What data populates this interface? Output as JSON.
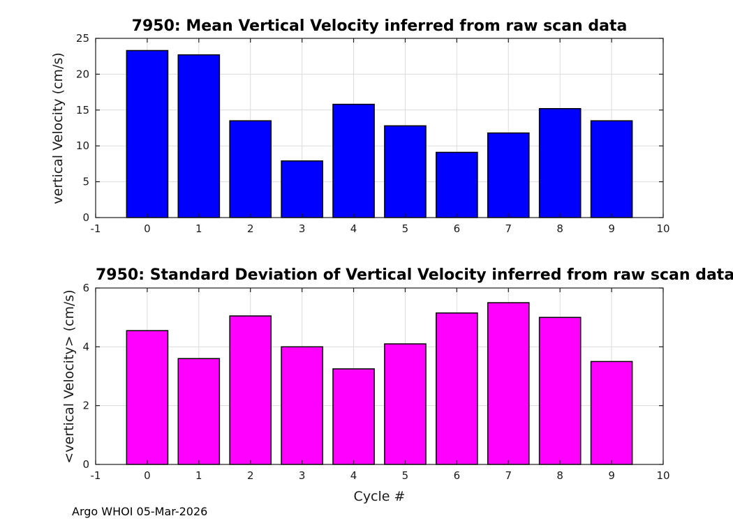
{
  "figure": {
    "footer": "Argo WHOI 05-Mar-2026",
    "background_color": "#ffffff",
    "axis_color": "#1a1a1a",
    "grid_color": "#dcdcdc"
  },
  "chart_data": [
    {
      "type": "bar",
      "title": "7950: Mean Vertical Velocity inferred from raw scan data",
      "xlabel": "",
      "ylabel": "vertical Velocity (cm/s)",
      "categories": [
        0,
        1,
        2,
        3,
        4,
        5,
        6,
        7,
        8,
        9
      ],
      "values": [
        23.3,
        22.7,
        13.5,
        7.9,
        15.8,
        12.8,
        9.1,
        11.8,
        15.2,
        13.5
      ],
      "xlim": [
        -1,
        10
      ],
      "ylim": [
        0,
        25
      ],
      "xticks": [
        -1,
        0,
        1,
        2,
        3,
        4,
        5,
        6,
        7,
        8,
        9,
        10
      ],
      "yticks": [
        0,
        5,
        10,
        15,
        20,
        25
      ],
      "grid": true,
      "bar_color": "#0000ff",
      "bar_edge_color": "#000000",
      "bar_width": 0.8
    },
    {
      "type": "bar",
      "title": "7950: Standard Deviation of Vertical Velocity inferred from raw scan data",
      "xlabel": "Cycle #",
      "ylabel": "<vertical Velocity> (cm/s)",
      "categories": [
        0,
        1,
        2,
        3,
        4,
        5,
        6,
        7,
        8,
        9
      ],
      "values": [
        4.55,
        3.6,
        5.05,
        4.0,
        3.25,
        4.1,
        5.15,
        5.5,
        5.0,
        3.5
      ],
      "xlim": [
        -1,
        10
      ],
      "ylim": [
        0,
        6
      ],
      "xticks": [
        -1,
        0,
        1,
        2,
        3,
        4,
        5,
        6,
        7,
        8,
        9,
        10
      ],
      "yticks": [
        0,
        2,
        4,
        6
      ],
      "grid": true,
      "bar_color": "#ff00ff",
      "bar_edge_color": "#000000",
      "bar_width": 0.8
    }
  ]
}
